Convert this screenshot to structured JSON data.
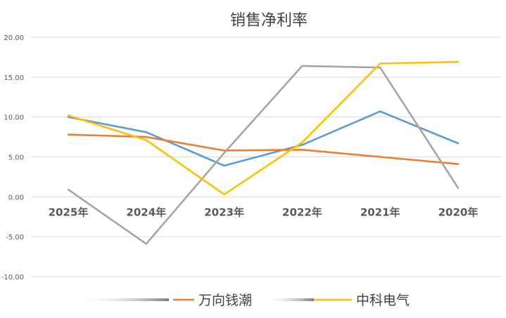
{
  "chart_data": {
    "type": "line",
    "title": "销售净利率",
    "categories": [
      "2025年",
      "2024年",
      "2023年",
      "2022年",
      "2021年",
      "2020年"
    ],
    "yticks": [
      "20.00",
      "15.00",
      "10.00",
      "5.00",
      "0.00",
      "-5.00",
      "-10.00"
    ],
    "ylim": [
      -10,
      20
    ],
    "grid": true,
    "legend_position": "bottom",
    "series": [
      {
        "name": "",
        "color": "#5b9bd5",
        "values": [
          10.0,
          8.1,
          3.9,
          6.5,
          10.7,
          6.7
        ]
      },
      {
        "name": "万向钱潮",
        "color": "#ed7d31",
        "values": [
          7.8,
          7.5,
          5.8,
          5.9,
          5.0,
          4.1
        ]
      },
      {
        "name": "",
        "color": "#a5a5a5",
        "values": [
          0.9,
          -5.9,
          5.5,
          16.4,
          16.2,
          1.1
        ]
      },
      {
        "name": "中科电气",
        "color": "#ffc000",
        "values": [
          10.2,
          7.1,
          0.3,
          6.8,
          16.7,
          16.9
        ]
      }
    ]
  }
}
